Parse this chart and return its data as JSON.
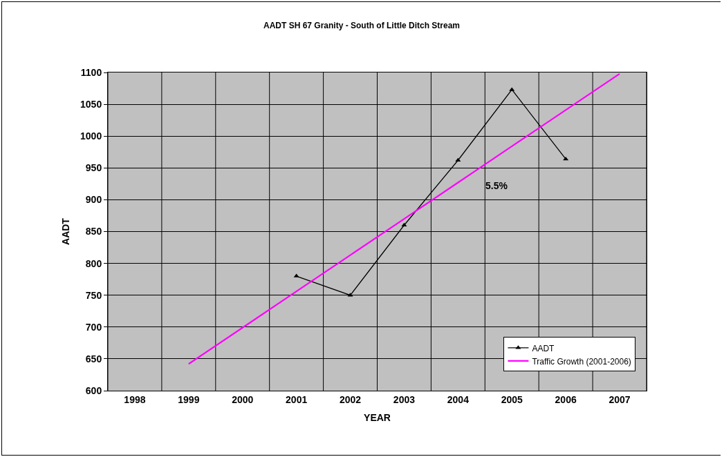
{
  "chart_data": {
    "type": "line",
    "title": "AADT SH 67 Granity - South of Little Ditch Stream",
    "xlabel": "YEAR",
    "ylabel": "AADT",
    "categories": [
      "1998",
      "1999",
      "2000",
      "2001",
      "2002",
      "2003",
      "2004",
      "2005",
      "2006",
      "2007"
    ],
    "series": [
      {
        "name": "AADT",
        "color": "#000000",
        "marker": "triangle",
        "values": [
          null,
          null,
          null,
          780,
          750,
          860,
          962,
          1073,
          964,
          null
        ]
      },
      {
        "name": "Traffic Growth (2001-2006)",
        "color": "#ff00ff",
        "marker": "none",
        "values": [
          null,
          642,
          699,
          756,
          813,
          870,
          927,
          984,
          1041,
          1098
        ]
      }
    ],
    "annotations": [
      "5.5%"
    ],
    "ylim": [
      600,
      1100
    ],
    "yticks": [
      600,
      650,
      700,
      750,
      800,
      850,
      900,
      950,
      1000,
      1050,
      1100
    ],
    "grid": true,
    "legend": "bottom right",
    "line_style": "solid"
  }
}
